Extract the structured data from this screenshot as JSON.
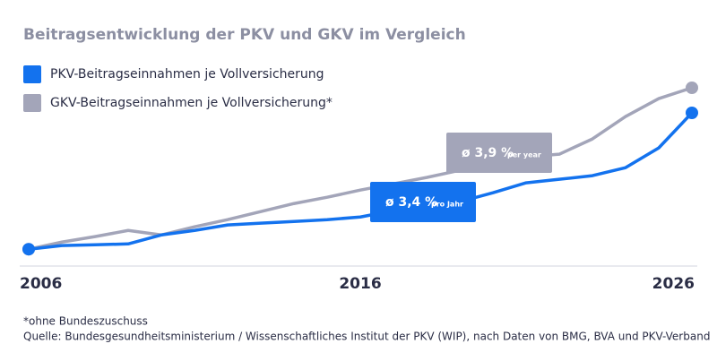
{
  "chart_data": {
    "type": "line",
    "title": "Beitragsentwicklung der PKV und GKV im Vergleich",
    "x": [
      2006,
      2007,
      2008,
      2009,
      2010,
      2011,
      2012,
      2013,
      2014,
      2015,
      2016,
      2017,
      2018,
      2019,
      2020,
      2021,
      2022,
      2023,
      2024,
      2025,
      2026
    ],
    "xlim": [
      2006,
      2026
    ],
    "xticks": [
      2006,
      2016,
      2026
    ],
    "ylim": [
      88,
      220
    ],
    "series": [
      {
        "name": "PKV-Beitragseinnahmen je Vollversicherung",
        "color": "#1372ee",
        "values": [
          100,
          102.6,
          103.2,
          103.8,
          110.2,
          113.4,
          117.3,
          118.6,
          119.8,
          121.1,
          123.0,
          127.5,
          130.7,
          133.9,
          140.3,
          147.4,
          149.9,
          152.5,
          158.2,
          172.3,
          197.3
        ]
      },
      {
        "name": "GKV-Beitragseinnahmen je Vollversicherung*",
        "color": "#a3a5b9",
        "values": [
          100,
          105.1,
          109.0,
          113.4,
          110.2,
          116.0,
          121.1,
          126.9,
          132.6,
          137.1,
          142.2,
          146.7,
          151.2,
          156.3,
          162.7,
          165.9,
          167.8,
          178.7,
          194.7,
          207.5,
          215.2
        ]
      }
    ],
    "annotations": [
      {
        "text": "ø 3,4 %",
        "sub": "pro Jahr"
      },
      {
        "text": "ø 3,9 %",
        "sub": "per year"
      }
    ],
    "footnotes": [
      "*ohne Bundeszuschuss",
      "Quelle: Bundesgesundheitsministerium / Wissenschaftliches Institut der PKV (WIP), nach Daten von BMG, BVA und PKV-Verband"
    ]
  }
}
